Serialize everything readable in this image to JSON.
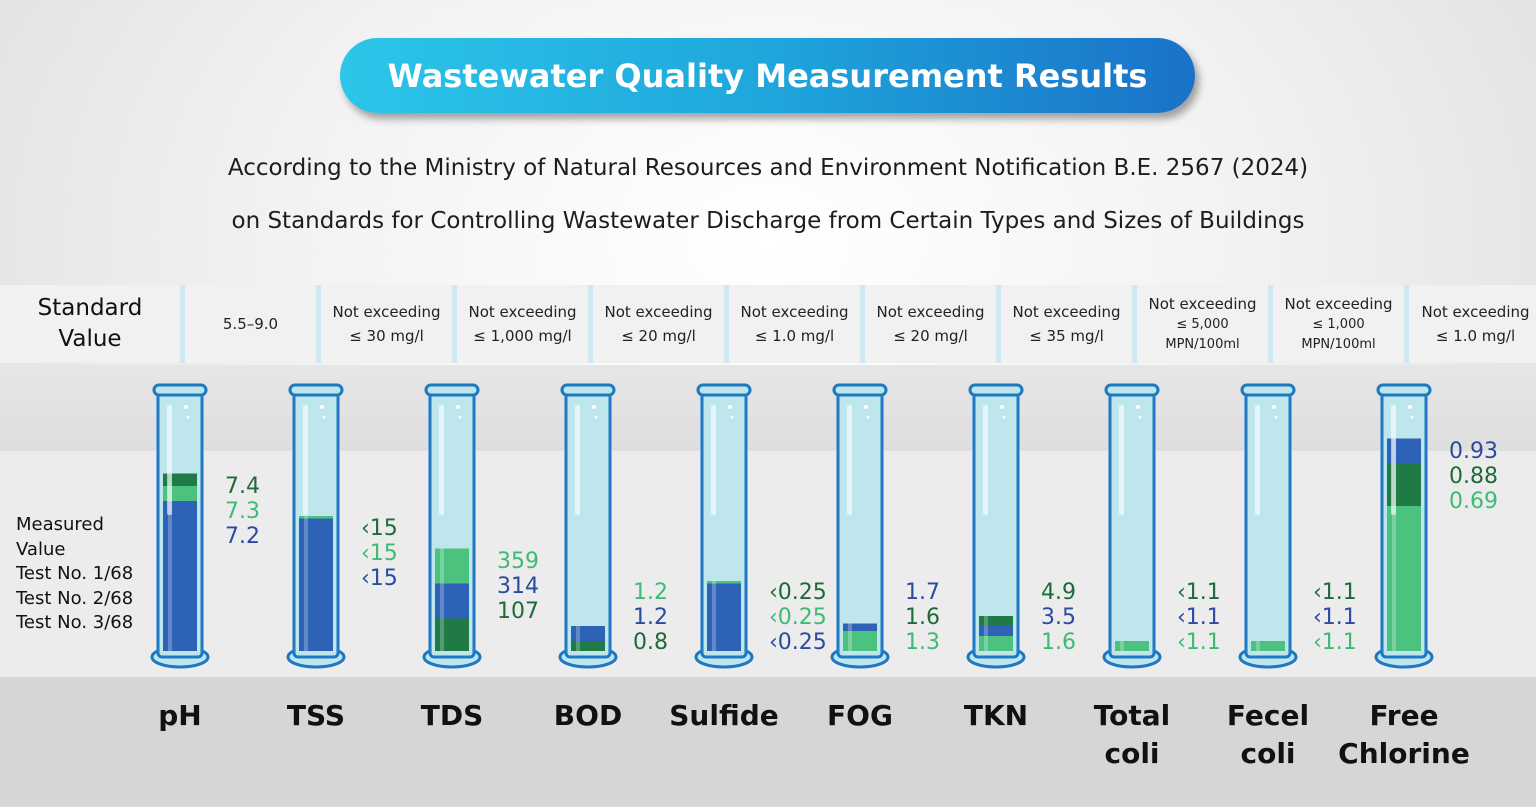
{
  "title": "Wastewater Quality Measurement Results",
  "subtitle_lines": [
    "According to the Ministry of Natural Resources and Environment Notification B.E. 2567 (2024)",
    "on Standards for Controlling Wastewater Discharge from Certain Types and Sizes of Buildings"
  ],
  "standard_header": [
    "Standard",
    "Value"
  ],
  "measured_header": [
    "Measured",
    "Value",
    "Test No. 1/68",
    "Test No. 2/68",
    "Test No. 3/68"
  ],
  "colors": {
    "test1": "#1e6b3a",
    "test2": "#3dbb73",
    "test3": "#2b4aa0",
    "tube_glass": "#bfe6ec",
    "tube_outline": "#1f78c4",
    "fill_blue": "#2d62b6",
    "fill_dark_green": "#1f7a45",
    "fill_light_green": "#4cc27f"
  },
  "chart_data": {
    "type": "bar",
    "parameters": [
      {
        "name": [
          "pH"
        ],
        "standard": [
          "5.5–9.0"
        ],
        "fill_level": 0.71,
        "layers": [
          {
            "color": "#2d62b6",
            "to": 0.6
          },
          {
            "color": "#4cc27f",
            "to": 0.66
          },
          {
            "color": "#1f7a45",
            "to": 0.71
          }
        ],
        "values": [
          {
            "text": "7.4",
            "color": "#1e6b3a"
          },
          {
            "text": "7.3",
            "color": "#3dbb73"
          },
          {
            "text": "7.2",
            "color": "#2b4aa0"
          }
        ]
      },
      {
        "name": [
          "TSS"
        ],
        "standard": [
          "Not exceeding",
          "≤ 30 mg/l"
        ],
        "fill_level": 0.54,
        "layers": [
          {
            "color": "#2d62b6",
            "to": 0.53
          },
          {
            "color": "#4cc27f",
            "to": 0.54
          }
        ],
        "values": [
          {
            "text": "‹15",
            "color": "#1e6b3a"
          },
          {
            "text": "‹15",
            "color": "#3dbb73"
          },
          {
            "text": "‹15",
            "color": "#2b4aa0"
          }
        ]
      },
      {
        "name": [
          "TDS"
        ],
        "standard": [
          "Not exceeding",
          "≤ 1,000 mg/l"
        ],
        "fill_level": 0.41,
        "layers": [
          {
            "color": "#1f7a45",
            "to": 0.13
          },
          {
            "color": "#2d62b6",
            "to": 0.27
          },
          {
            "color": "#4cc27f",
            "to": 0.41
          }
        ],
        "values": [
          {
            "text": "359",
            "color": "#3dbb73"
          },
          {
            "text": "314",
            "color": "#2b4aa0"
          },
          {
            "text": "107",
            "color": "#1e6b3a"
          }
        ]
      },
      {
        "name": [
          "BOD"
        ],
        "standard": [
          "Not exceeding",
          "≤ 20 mg/l"
        ],
        "fill_level": 0.1,
        "layers": [
          {
            "color": "#1f7a45",
            "to": 0.04
          },
          {
            "color": "#2d62b6",
            "to": 0.1
          }
        ],
        "values": [
          {
            "text": "1.2",
            "color": "#3dbb73"
          },
          {
            "text": "1.2",
            "color": "#2b4aa0"
          },
          {
            "text": "0.8",
            "color": "#1e6b3a"
          }
        ]
      },
      {
        "name": [
          "Sulfide"
        ],
        "standard": [
          "Not exceeding",
          "≤ 1.0 mg/l"
        ],
        "fill_level": 0.28,
        "layers": [
          {
            "color": "#2d62b6",
            "to": 0.27
          },
          {
            "color": "#4cc27f",
            "to": 0.28
          }
        ],
        "values": [
          {
            "text": "‹0.25",
            "color": "#1e6b3a"
          },
          {
            "text": "‹0.25",
            "color": "#3dbb73"
          },
          {
            "text": "‹0.25",
            "color": "#2b4aa0"
          }
        ]
      },
      {
        "name": [
          "FOG"
        ],
        "standard": [
          "Not exceeding",
          "≤ 20 mg/l"
        ],
        "fill_level": 0.11,
        "layers": [
          {
            "color": "#4cc27f",
            "to": 0.08
          },
          {
            "color": "#2d62b6",
            "to": 0.11
          }
        ],
        "values": [
          {
            "text": "1.7",
            "color": "#2b4aa0"
          },
          {
            "text": "1.6",
            "color": "#1e6b3a"
          },
          {
            "text": "1.3",
            "color": "#3dbb73"
          }
        ]
      },
      {
        "name": [
          "TKN"
        ],
        "standard": [
          "Not exceeding",
          "≤ 35 mg/l"
        ],
        "fill_level": 0.14,
        "layers": [
          {
            "color": "#4cc27f",
            "to": 0.06
          },
          {
            "color": "#2d62b6",
            "to": 0.1
          },
          {
            "color": "#1f7a45",
            "to": 0.14
          }
        ],
        "values": [
          {
            "text": "4.9",
            "color": "#1e6b3a"
          },
          {
            "text": "3.5",
            "color": "#2b4aa0"
          },
          {
            "text": "1.6",
            "color": "#3dbb73"
          }
        ]
      },
      {
        "name": [
          "Total",
          "coli"
        ],
        "standard": [
          "Not exceeding",
          "≤ 5,000",
          "MPN/100ml"
        ],
        "fill_level": 0.04,
        "layers": [
          {
            "color": "#4cc27f",
            "to": 0.04
          }
        ],
        "values": [
          {
            "text": "‹1.1",
            "color": "#1e6b3a"
          },
          {
            "text": "‹1.1",
            "color": "#2b4aa0"
          },
          {
            "text": "‹1.1",
            "color": "#3dbb73"
          }
        ]
      },
      {
        "name": [
          "Fecel",
          "coli"
        ],
        "standard": [
          "Not exceeding",
          "≤ 1,000",
          "MPN/100ml"
        ],
        "fill_level": 0.04,
        "layers": [
          {
            "color": "#4cc27f",
            "to": 0.04
          }
        ],
        "values": [
          {
            "text": "‹1.1",
            "color": "#1e6b3a"
          },
          {
            "text": "‹1.1",
            "color": "#2b4aa0"
          },
          {
            "text": "‹1.1",
            "color": "#3dbb73"
          }
        ]
      },
      {
        "name": [
          "Free",
          "Chlorine"
        ],
        "standard": [
          "Not exceeding",
          "≤ 1.0 mg/l"
        ],
        "fill_level": 0.85,
        "layers": [
          {
            "color": "#4cc27f",
            "to": 0.58
          },
          {
            "color": "#1f7a45",
            "to": 0.75
          },
          {
            "color": "#2d62b6",
            "to": 0.85
          }
        ],
        "values": [
          {
            "text": "0.93",
            "color": "#2b4aa0"
          },
          {
            "text": "0.88",
            "color": "#1e6b3a"
          },
          {
            "text": "0.69",
            "color": "#3dbb73"
          }
        ]
      }
    ]
  }
}
